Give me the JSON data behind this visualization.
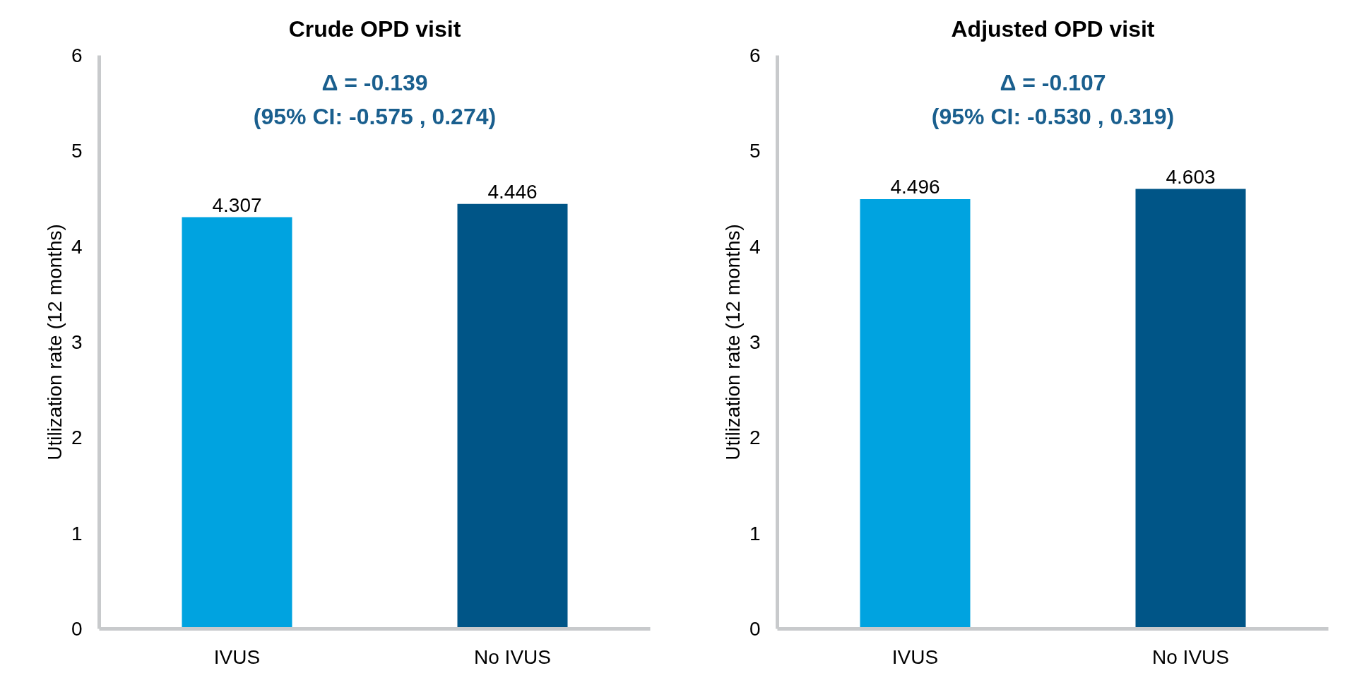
{
  "chart_data": [
    {
      "type": "bar",
      "title": "Crude OPD visit",
      "ylabel": "Utilization rate (12 months)",
      "categories": [
        "IVUS",
        "No IVUS"
      ],
      "values": [
        4.307,
        4.446
      ],
      "colors": [
        "#00a3e0",
        "#005587"
      ],
      "ylim": [
        0,
        6
      ],
      "yticks": [
        0,
        1,
        2,
        3,
        4,
        5,
        6
      ],
      "data_labels": true,
      "grid": false,
      "annotations": [
        "Δ = -0.139",
        "(95% CI: -0.575 , 0.274)"
      ]
    },
    {
      "type": "bar",
      "title": "Adjusted OPD visit",
      "ylabel": "Utilization rate (12 months)",
      "categories": [
        "IVUS",
        "No IVUS"
      ],
      "values": [
        4.496,
        4.603
      ],
      "colors": [
        "#00a3e0",
        "#005587"
      ],
      "ylim": [
        0,
        6
      ],
      "yticks": [
        0,
        1,
        2,
        3,
        4,
        5,
        6
      ],
      "data_labels": true,
      "grid": false,
      "annotations": [
        "Δ = -0.107",
        "(95% CI: -0.530 , 0.319)"
      ]
    }
  ]
}
